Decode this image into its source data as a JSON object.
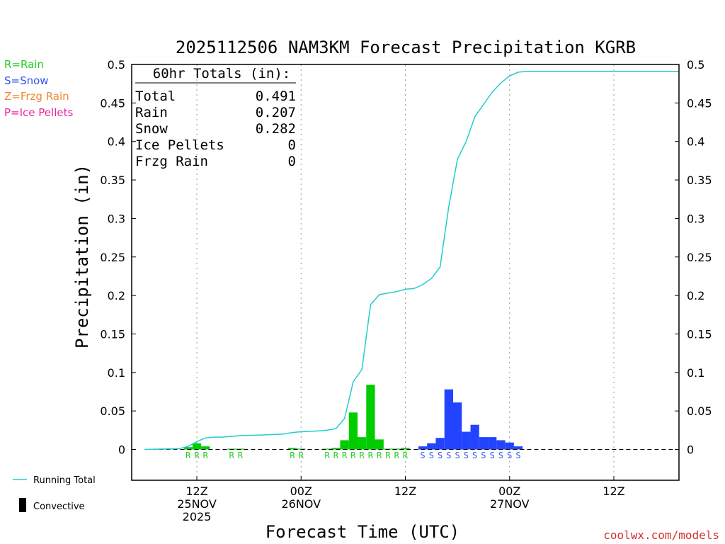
{
  "chart_data": {
    "type": "bar",
    "title": "2025112506 NAM3KM Forecast Precipitation KGRB",
    "xlabel": "Forecast Time (UTC)",
    "ylabel": "Precipitation (in)",
    "ylim": [
      -0.04,
      0.5
    ],
    "yticks": [
      "0.5",
      "0.45",
      "0.4",
      "0.35",
      "0.3",
      "0.25",
      "0.2",
      "0.15",
      "0.1",
      "0.05",
      "0"
    ],
    "x_range_hours": [
      -1.5,
      61.5
    ],
    "x_ticks": [
      {
        "hour": 6,
        "lines": [
          "12Z",
          "25NOV",
          "2025"
        ]
      },
      {
        "hour": 18,
        "lines": [
          "00Z",
          "26NOV"
        ]
      },
      {
        "hour": 30,
        "lines": [
          "12Z"
        ]
      },
      {
        "hour": 42,
        "lines": [
          "00Z",
          "27NOV"
        ]
      },
      {
        "hour": 54,
        "lines": [
          "12Z"
        ]
      }
    ],
    "totals": {
      "header": "60hr Totals (in):",
      "rows": [
        {
          "label": "Total",
          "value": "0.491"
        },
        {
          "label": "Rain",
          "value": "0.207"
        },
        {
          "label": "Snow",
          "value": "0.282"
        },
        {
          "label": "Ice Pellets",
          "value": "0"
        },
        {
          "label": "Frzg Rain",
          "value": "0"
        }
      ]
    },
    "type_legend": [
      {
        "text": "R=Rain",
        "color": "#22cc22"
      },
      {
        "text": "S=Snow",
        "color": "#3355ee"
      },
      {
        "text": "Z=Frzg Rain",
        "color": "#ee8833"
      },
      {
        "text": "P=Ice Pellets",
        "color": "#ee2299"
      }
    ],
    "series_legend": [
      {
        "label": "Running Total",
        "color": "#22cccc",
        "kind": "line"
      },
      {
        "label": "Convective",
        "color": "#000000",
        "kind": "bar"
      }
    ],
    "colors": {
      "rain": "#00cc00",
      "snow": "#2244ff",
      "running_total": "#22cccc"
    },
    "bars": [
      {
        "hour": 5,
        "value": 0.003,
        "type": "rain"
      },
      {
        "hour": 6,
        "value": 0.008,
        "type": "rain"
      },
      {
        "hour": 7,
        "value": 0.004,
        "type": "rain"
      },
      {
        "hour": 10,
        "value": 0.001,
        "type": "rain"
      },
      {
        "hour": 11,
        "value": 0.001,
        "type": "rain"
      },
      {
        "hour": 17,
        "value": 0.002,
        "type": "rain"
      },
      {
        "hour": 18,
        "value": 0.001,
        "type": "rain"
      },
      {
        "hour": 21,
        "value": 0.001,
        "type": "rain"
      },
      {
        "hour": 22,
        "value": 0.002,
        "type": "rain"
      },
      {
        "hour": 23,
        "value": 0.012,
        "type": "rain"
      },
      {
        "hour": 24,
        "value": 0.048,
        "type": "rain"
      },
      {
        "hour": 25,
        "value": 0.016,
        "type": "rain"
      },
      {
        "hour": 26,
        "value": 0.084,
        "type": "rain"
      },
      {
        "hour": 27,
        "value": 0.013,
        "type": "rain"
      },
      {
        "hour": 28,
        "value": 0.001,
        "type": "rain"
      },
      {
        "hour": 29,
        "value": 0.001,
        "type": "rain"
      },
      {
        "hour": 30,
        "value": 0.002,
        "type": "rain"
      },
      {
        "hour": 32,
        "value": 0.004,
        "type": "snow"
      },
      {
        "hour": 33,
        "value": 0.008,
        "type": "snow"
      },
      {
        "hour": 34,
        "value": 0.015,
        "type": "snow"
      },
      {
        "hour": 35,
        "value": 0.078,
        "type": "snow"
      },
      {
        "hour": 36,
        "value": 0.061,
        "type": "snow"
      },
      {
        "hour": 37,
        "value": 0.023,
        "type": "snow"
      },
      {
        "hour": 38,
        "value": 0.032,
        "type": "snow"
      },
      {
        "hour": 39,
        "value": 0.016,
        "type": "snow"
      },
      {
        "hour": 40,
        "value": 0.016,
        "type": "snow"
      },
      {
        "hour": 41,
        "value": 0.012,
        "type": "snow"
      },
      {
        "hour": 42,
        "value": 0.009,
        "type": "snow"
      },
      {
        "hour": 43,
        "value": 0.004,
        "type": "snow"
      }
    ],
    "type_codes": [
      {
        "hour": 5,
        "code": "R",
        "type": "rain"
      },
      {
        "hour": 6,
        "code": "R",
        "type": "rain"
      },
      {
        "hour": 7,
        "code": "R",
        "type": "rain"
      },
      {
        "hour": 10,
        "code": "R",
        "type": "rain"
      },
      {
        "hour": 11,
        "code": "R",
        "type": "rain"
      },
      {
        "hour": 17,
        "code": "R",
        "type": "rain"
      },
      {
        "hour": 18,
        "code": "R",
        "type": "rain"
      },
      {
        "hour": 21,
        "code": "R",
        "type": "rain"
      },
      {
        "hour": 22,
        "code": "R",
        "type": "rain"
      },
      {
        "hour": 23,
        "code": "R",
        "type": "rain"
      },
      {
        "hour": 24,
        "code": "R",
        "type": "rain"
      },
      {
        "hour": 25,
        "code": "R",
        "type": "rain"
      },
      {
        "hour": 26,
        "code": "R",
        "type": "rain"
      },
      {
        "hour": 27,
        "code": "R",
        "type": "rain"
      },
      {
        "hour": 28,
        "code": "R",
        "type": "rain"
      },
      {
        "hour": 29,
        "code": "R",
        "type": "rain"
      },
      {
        "hour": 30,
        "code": "R",
        "type": "rain"
      },
      {
        "hour": 32,
        "code": "S",
        "type": "snow"
      },
      {
        "hour": 33,
        "code": "S",
        "type": "snow"
      },
      {
        "hour": 34,
        "code": "S",
        "type": "snow"
      },
      {
        "hour": 35,
        "code": "S",
        "type": "snow"
      },
      {
        "hour": 36,
        "code": "S",
        "type": "snow"
      },
      {
        "hour": 37,
        "code": "S",
        "type": "snow"
      },
      {
        "hour": 38,
        "code": "S",
        "type": "snow"
      },
      {
        "hour": 39,
        "code": "S",
        "type": "snow"
      },
      {
        "hour": 40,
        "code": "S",
        "type": "snow"
      },
      {
        "hour": 41,
        "code": "S",
        "type": "snow"
      },
      {
        "hour": 42,
        "code": "S",
        "type": "snow"
      },
      {
        "hour": 43,
        "code": "S",
        "type": "snow"
      }
    ],
    "running_total": [
      [
        0,
        0
      ],
      [
        4,
        0.001
      ],
      [
        5,
        0.004
      ],
      [
        6,
        0.01
      ],
      [
        7,
        0.015
      ],
      [
        8,
        0.016
      ],
      [
        9,
        0.016
      ],
      [
        10,
        0.017
      ],
      [
        11,
        0.018
      ],
      [
        14,
        0.019
      ],
      [
        16,
        0.02
      ],
      [
        17,
        0.022
      ],
      [
        18,
        0.023
      ],
      [
        20,
        0.024
      ],
      [
        21,
        0.025
      ],
      [
        22,
        0.027
      ],
      [
        23,
        0.04
      ],
      [
        24,
        0.088
      ],
      [
        25,
        0.104
      ],
      [
        26,
        0.188
      ],
      [
        27,
        0.201
      ],
      [
        28,
        0.203
      ],
      [
        29,
        0.205
      ],
      [
        30,
        0.208
      ],
      [
        31,
        0.209
      ],
      [
        32,
        0.214
      ],
      [
        33,
        0.222
      ],
      [
        34,
        0.237
      ],
      [
        35,
        0.315
      ],
      [
        36,
        0.377
      ],
      [
        37,
        0.4
      ],
      [
        38,
        0.432
      ],
      [
        39,
        0.448
      ],
      [
        40,
        0.464
      ],
      [
        41,
        0.476
      ],
      [
        42,
        0.485
      ],
      [
        43,
        0.49
      ],
      [
        44,
        0.491
      ],
      [
        61.5,
        0.491
      ]
    ]
  },
  "footer": {
    "credit": "coolwx.com/models"
  }
}
